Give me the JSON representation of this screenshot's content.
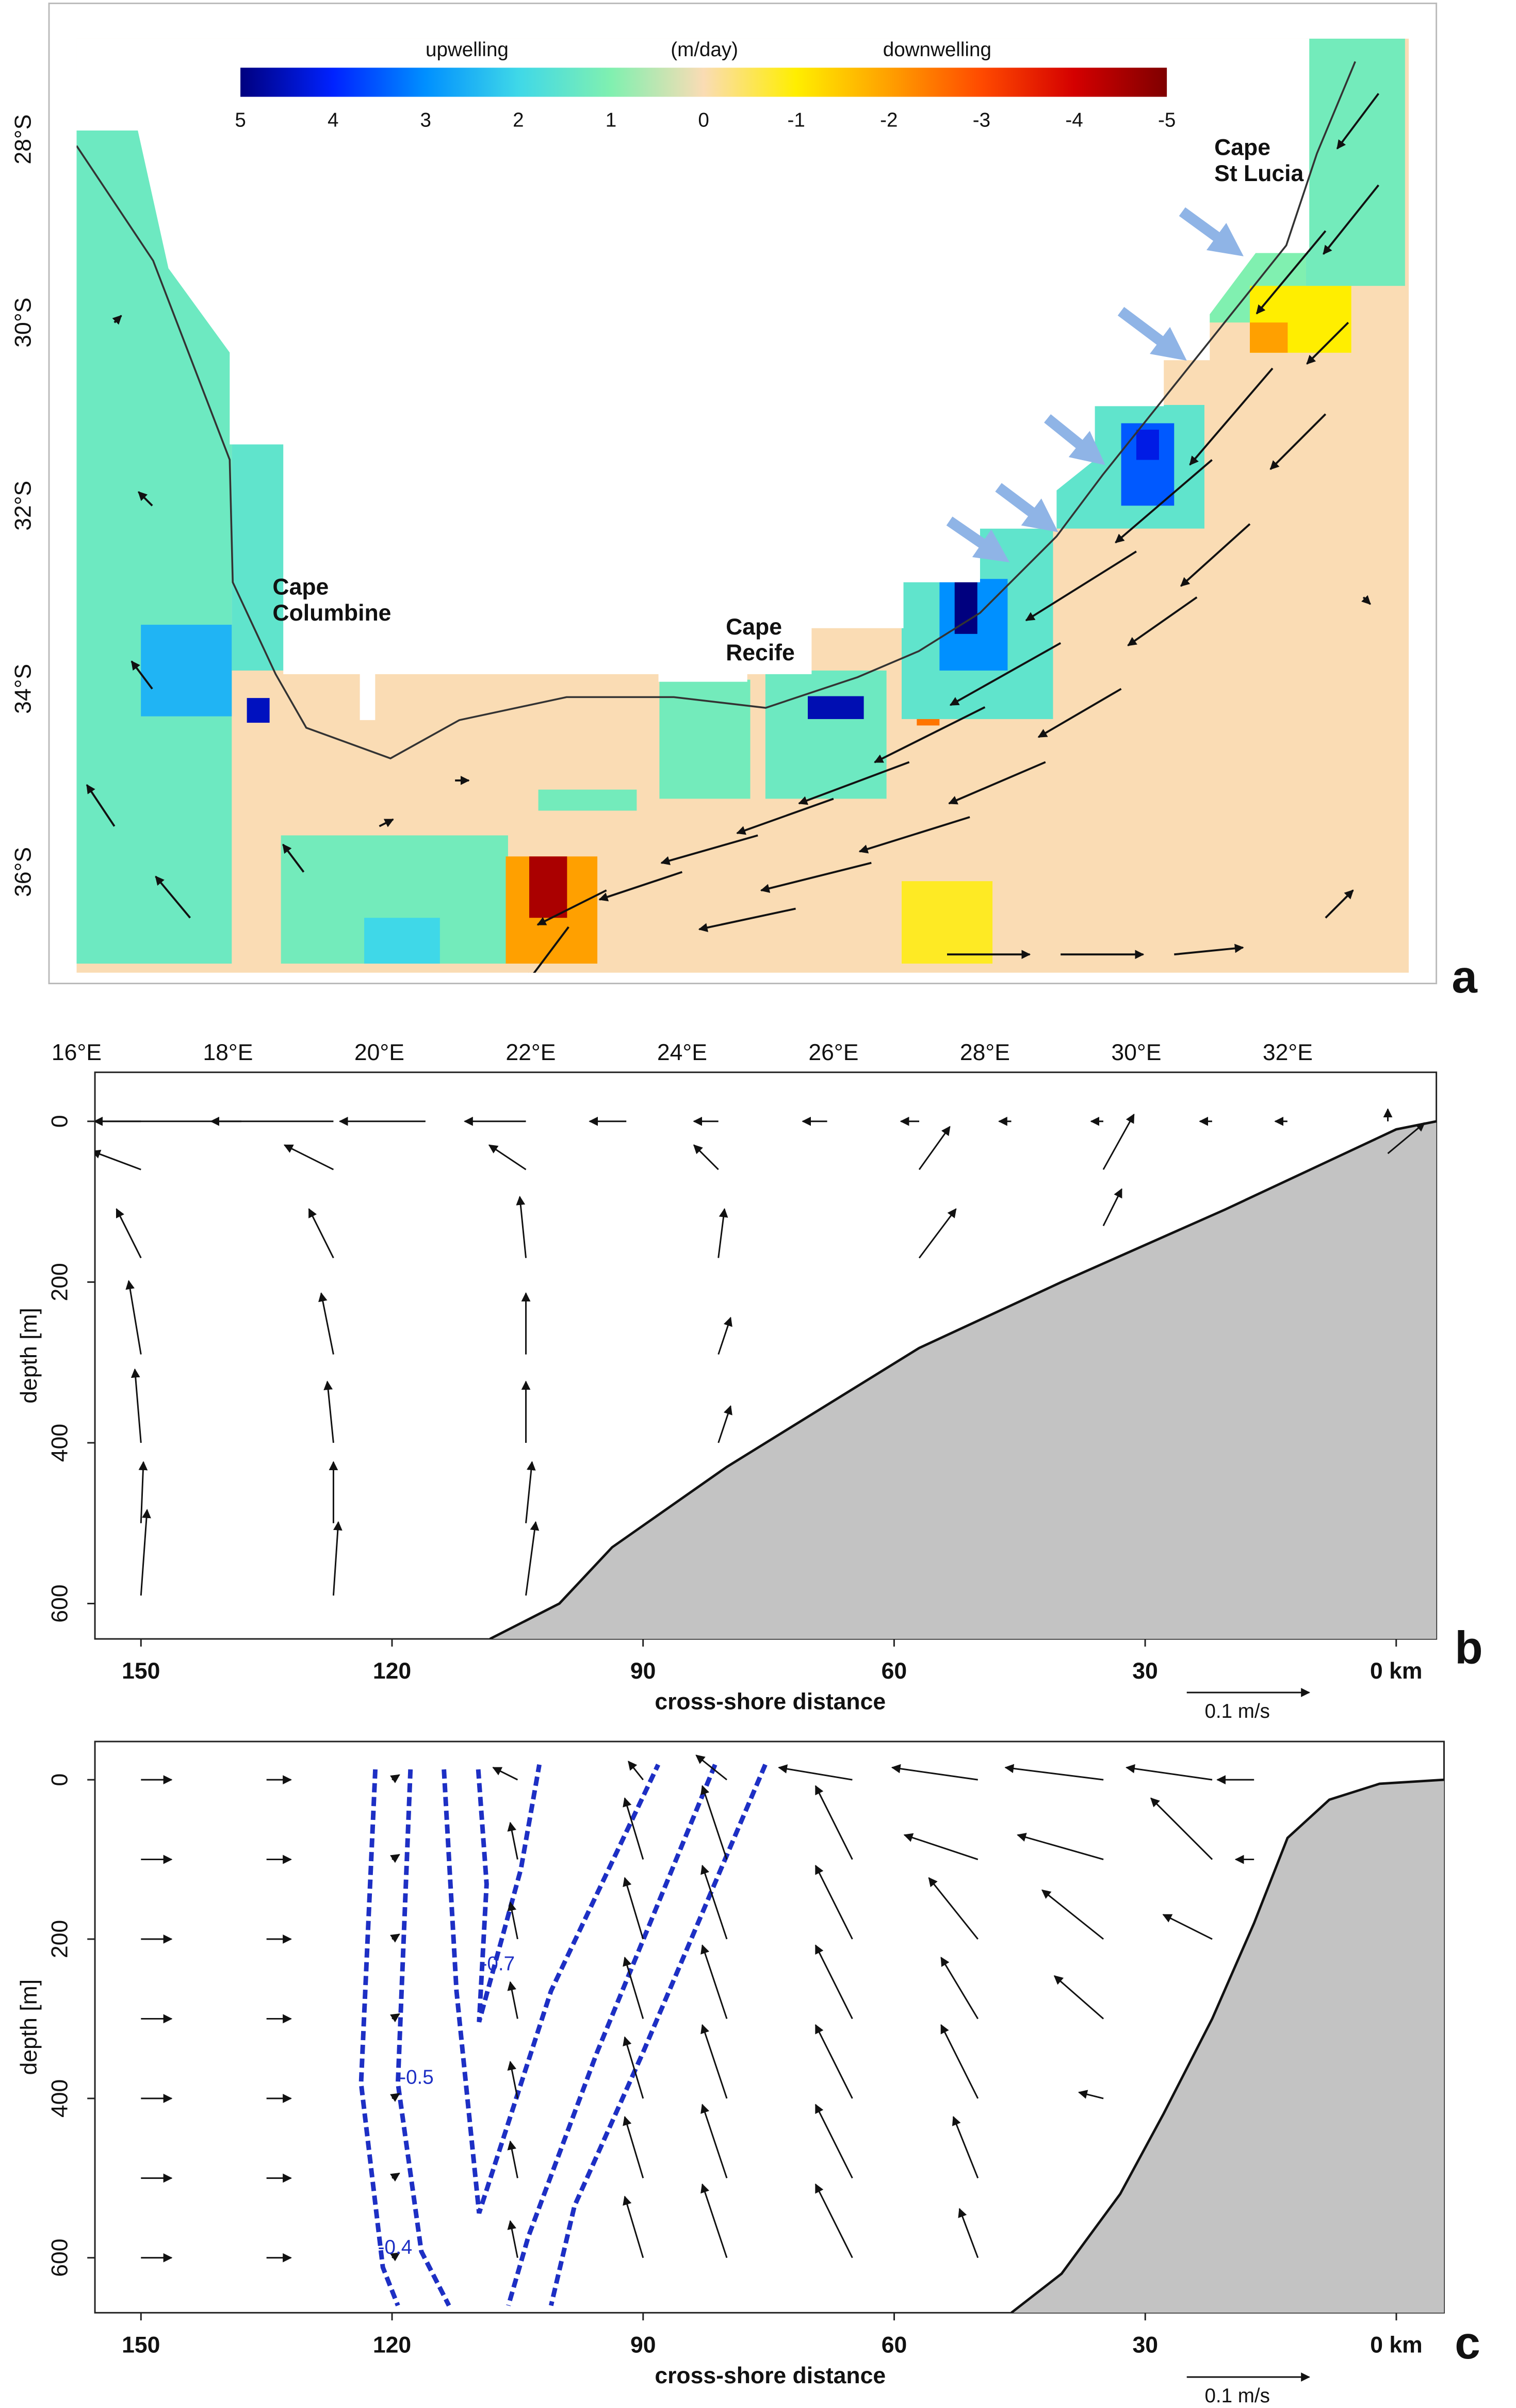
{
  "chart_data": [
    {
      "type": "map",
      "colorbar": {
        "ticks": [
          5,
          4,
          3,
          2,
          1,
          0,
          -1,
          -2,
          -3,
          -4,
          -5
        ],
        "colors": [
          "#00007f",
          "#0022ff",
          "#0090ff",
          "#3fd8e8",
          "#80f0b0",
          "#fadcb4",
          "#ffee00",
          "#ffa000",
          "#ff4a00",
          "#d40000",
          "#7f0000"
        ],
        "labels": [
          "upwelling",
          "(m/day)",
          "downwelling"
        ]
      },
      "xlim": [
        16,
        33.6
      ],
      "ylim": [
        -37.1,
        -26.9
      ],
      "xticks": [
        {
          "value": 16,
          "label": "16°E"
        },
        {
          "value": 18,
          "label": "18°E"
        },
        {
          "value": 20,
          "label": "20°E"
        },
        {
          "value": 22,
          "label": "22°E"
        },
        {
          "value": 24,
          "label": "24°E"
        },
        {
          "value": 26,
          "label": "26°E"
        },
        {
          "value": 28,
          "label": "28°E"
        },
        {
          "value": 30,
          "label": "30°E"
        },
        {
          "value": 32,
          "label": "32°E"
        }
      ],
      "yticks": [
        {
          "value": -28,
          "label": "28°S"
        },
        {
          "value": -30,
          "label": "30°S"
        },
        {
          "value": -32,
          "label": "32°S"
        },
        {
          "value": -34,
          "label": "34°S"
        },
        {
          "value": -36,
          "label": "36°S"
        }
      ],
      "patches": [
        {
          "lon": [
            16.0,
            18.05
          ],
          "lat": [
            -37.0,
            -27.9
          ],
          "value": 1.3
        },
        {
          "lon": [
            18.05,
            18.76
          ],
          "lat": [
            -33.8,
            -31.3
          ],
          "value": 1.5
        },
        {
          "lon": [
            16.85,
            18.05
          ],
          "lat": [
            -34.3,
            -33.3
          ],
          "value": 2.5
        },
        {
          "lon": [
            18.25,
            18.55
          ],
          "lat": [
            -34.37,
            -34.1
          ],
          "value": 4.5
        },
        {
          "lon": [
            18.7,
            21.7
          ],
          "lat": [
            -37.0,
            -35.6
          ],
          "value": 1.2
        },
        {
          "lon": [
            19.8,
            20.8
          ],
          "lat": [
            -37.0,
            -36.5
          ],
          "value": 2.0
        },
        {
          "lon": [
            22.1,
            23.4
          ],
          "lat": [
            -35.33,
            -35.1
          ],
          "value": 1.2
        },
        {
          "lon": [
            21.67,
            22.88
          ],
          "lat": [
            -37.0,
            -35.83
          ],
          "value": -2
        },
        {
          "lon": [
            21.98,
            22.48
          ],
          "lat": [
            -36.5,
            -35.83
          ],
          "value": -4.5
        },
        {
          "lon": [
            23.7,
            24.9
          ],
          "lat": [
            -35.2,
            -33.9
          ],
          "value": 1.2
        },
        {
          "lon": [
            25.1,
            26.7
          ],
          "lat": [
            -35.2,
            -33.8
          ],
          "value": 1.3
        },
        {
          "lon": [
            25.66,
            26.4
          ],
          "lat": [
            -34.33,
            -34.08
          ],
          "value": 4.6
        },
        {
          "lon": [
            27.1,
            27.4
          ],
          "lat": [
            -34.4,
            -33.9
          ],
          "value": -2.5
        },
        {
          "lon": [
            26.9,
            28.1
          ],
          "lat": [
            -37.0,
            -36.1
          ],
          "value": -0.8
        },
        {
          "lon": [
            26.9,
            28.9
          ],
          "lat": [
            -34.33,
            -32.25
          ],
          "value": 1.5
        },
        {
          "lon": [
            27.4,
            28.3
          ],
          "lat": [
            -33.8,
            -32.8
          ],
          "value": 3
        },
        {
          "lon": [
            27.6,
            27.9
          ],
          "lat": [
            -33.4,
            -32.83
          ],
          "value": 5
        },
        {
          "lon": [
            28.9,
            30.9
          ],
          "lat": [
            -32.25,
            -30.9
          ],
          "value": 1.5
        },
        {
          "lon": [
            29.8,
            30.5
          ],
          "lat": [
            -32.0,
            -31.1
          ],
          "value": 3.5
        },
        {
          "lon": [
            30.0,
            30.3
          ],
          "lat": [
            -31.5,
            -31.17
          ],
          "value": 4.2
        },
        {
          "lon": [
            30.9,
            32.24
          ],
          "lat": [
            -30.0,
            -29.0
          ],
          "value": 1.0
        },
        {
          "lon": [
            31.5,
            32.84
          ],
          "lat": [
            -30.33,
            -29.6
          ],
          "value": -1
        },
        {
          "lon": [
            31.5,
            32.0
          ],
          "lat": [
            -30.33,
            -30.0
          ],
          "value": -2
        },
        {
          "lon": [
            32.24,
            33.55
          ],
          "lat": [
            -29.6,
            -26.9
          ],
          "value": 1.2
        }
      ],
      "vectors": {
        "lon": [
          33.2,
          33.2,
          32.5,
          32.8,
          31.8,
          32.5,
          31.0,
          31.5,
          30.0,
          30.8,
          29.0,
          29.8,
          28.0,
          28.8,
          27.0,
          27.8,
          26.0,
          26.5,
          25.0,
          25.5,
          24.0,
          23.0,
          22.5,
          27.5,
          29.0,
          30.5,
          32.5,
          16.5,
          17,
          17,
          16.5,
          17.5,
          19,
          20,
          21,
          33
        ],
        "lat": [
          -27.5,
          -28.5,
          -29.0,
          -30.0,
          -30.5,
          -31.0,
          -31.5,
          -32.2,
          -32.5,
          -33.0,
          -33.5,
          -34.0,
          -34.2,
          -34.8,
          -34.8,
          -35.4,
          -35.2,
          -35.9,
          -35.6,
          -36.4,
          -36.0,
          -36.2,
          -36.6,
          -36.9,
          -36.9,
          -36.9,
          -36.5,
          -30,
          -32,
          -34,
          -35.5,
          -36.5,
          -36,
          -35.5,
          -35,
          -33
        ],
        "u": [
          -0.3,
          -0.4,
          -0.5,
          -0.3,
          -0.6,
          -0.4,
          -0.7,
          -0.5,
          -0.8,
          -0.5,
          -0.8,
          -0.6,
          -0.8,
          -0.7,
          -0.8,
          -0.8,
          -0.7,
          -0.8,
          -0.7,
          -0.7,
          -0.6,
          -0.5,
          -0.3,
          0.6,
          0.6,
          0.5,
          0.2,
          0.05,
          -0.1,
          -0.15,
          -0.2,
          -0.25,
          -0.15,
          0.1,
          0.1,
          0.05
        ],
        "v": [
          -0.4,
          -0.5,
          -0.6,
          -0.3,
          -0.7,
          -0.4,
          -0.6,
          -0.45,
          -0.5,
          -0.35,
          -0.45,
          -0.35,
          -0.4,
          -0.3,
          -0.3,
          -0.25,
          -0.25,
          -0.2,
          -0.2,
          -0.15,
          -0.2,
          -0.25,
          -0.4,
          0,
          0,
          0.05,
          0.2,
          0.05,
          0.1,
          0.2,
          0.3,
          0.3,
          0.2,
          0.05,
          0,
          -0.05
        ]
      },
      "annotations": [
        "Cape Columbine",
        "Cape Recife",
        "Cape St Lucia"
      ],
      "panel": "a"
    },
    {
      "type": "section",
      "xlim": [
        155.5,
        -4.8
      ],
      "ylim": [
        644,
        -61
      ],
      "xticks": [
        150,
        120,
        90,
        60,
        30,
        {
          "value": 0,
          "label": "0 km"
        }
      ],
      "yticks": [
        0,
        200,
        400,
        600
      ],
      "xlabel": "cross-shore distance",
      "ylabel": "depth [m]",
      "scale": {
        "value": 0.1,
        "label": "0.1 m/s"
      },
      "bottom": {
        "distance": [
          108.3,
          100,
          93.7,
          80,
          57,
          40,
          20.5,
          0,
          -4.8
        ],
        "depth": [
          644,
          600,
          530,
          430,
          282,
          200,
          110,
          10,
          0
        ]
      },
      "vectors": {
        "distance": [
          150,
          138,
          127,
          116,
          104,
          92,
          81,
          68,
          57,
          46,
          35,
          22,
          13,
          1,
          150,
          150,
          150,
          150,
          150,
          150,
          127,
          127,
          127,
          127,
          127,
          127,
          104,
          104,
          104,
          104,
          104,
          104,
          81,
          81,
          81,
          81,
          57,
          57,
          35,
          35,
          1
        ],
        "depth": [
          0,
          0,
          0,
          0,
          0,
          0,
          0,
          0,
          0,
          0,
          0,
          0,
          0,
          0,
          60,
          170,
          290,
          400,
          500,
          590,
          60,
          170,
          290,
          400,
          500,
          590,
          60,
          170,
          290,
          400,
          500,
          590,
          60,
          170,
          290,
          400,
          60,
          170,
          60,
          130,
          40
        ],
        "u": [
          -0.19,
          -0.12,
          -0.1,
          -0.07,
          -0.05,
          -0.03,
          -0.02,
          -0.02,
          -0.015,
          -0.01,
          -0.01,
          -0.01,
          -0.01,
          0,
          -0.04,
          -0.02,
          -0.01,
          -0.005,
          0.002,
          0.005,
          -0.04,
          -0.02,
          -0.01,
          -0.005,
          0,
          0.004,
          -0.03,
          -0.005,
          0,
          0,
          0.005,
          0.008,
          -0.02,
          0.005,
          0.01,
          0.01,
          0.025,
          0.03,
          0.025,
          0.015,
          0.03
        ],
        "v": [
          0,
          0,
          0,
          0,
          0,
          0,
          0,
          0,
          0,
          0,
          0,
          0,
          0,
          0.01,
          0.015,
          0.04,
          0.06,
          0.06,
          0.05,
          0.07,
          0.02,
          0.04,
          0.05,
          0.05,
          0.05,
          0.06,
          0.02,
          0.05,
          0.05,
          0.05,
          0.05,
          0.06,
          0.02,
          0.04,
          0.03,
          0.03,
          0.035,
          0.04,
          0.045,
          0.03,
          0.025
        ]
      },
      "panel": "b"
    },
    {
      "type": "section",
      "xlim": [
        155.5,
        -5.7
      ],
      "ylim": [
        669,
        -48
      ],
      "xticks": [
        150,
        120,
        90,
        60,
        30,
        {
          "value": 0,
          "label": "0 km"
        }
      ],
      "yticks": [
        0,
        200,
        400,
        600
      ],
      "xlabel": "cross-shore distance",
      "ylabel": "depth [m]",
      "scale": {
        "value": 0.1,
        "label": "0.1 m/s"
      },
      "bottom": {
        "distance": [
          46,
          40,
          33,
          27.8,
          22,
          17,
          13,
          8,
          2,
          -5.7
        ],
        "depth": [
          669,
          620,
          520,
          419,
          300,
          180,
          73,
          25,
          5,
          0
        ]
      },
      "vectors": {
        "distance": [
          150,
          150,
          150,
          150,
          150,
          150,
          150,
          135,
          135,
          135,
          135,
          135,
          135,
          135,
          120,
          120,
          120,
          120,
          120,
          120,
          120,
          105,
          105,
          105,
          105,
          105,
          105,
          105,
          90,
          90,
          90,
          90,
          90,
          90,
          90,
          80,
          80,
          80,
          80,
          80,
          80,
          80,
          65,
          65,
          65,
          65,
          65,
          65,
          65,
          50,
          50,
          50,
          50,
          50,
          50,
          50,
          35,
          35,
          35,
          35,
          35,
          22,
          22,
          22,
          17,
          17
        ],
        "depth": [
          0,
          100,
          200,
          300,
          400,
          500,
          600,
          0,
          100,
          200,
          300,
          400,
          500,
          600,
          0,
          100,
          200,
          300,
          400,
          500,
          600,
          0,
          100,
          200,
          300,
          400,
          500,
          600,
          0,
          100,
          200,
          300,
          400,
          500,
          600,
          0,
          100,
          200,
          300,
          400,
          500,
          600,
          0,
          100,
          200,
          300,
          400,
          500,
          600,
          0,
          100,
          200,
          300,
          400,
          500,
          600,
          0,
          100,
          200,
          300,
          400,
          0,
          100,
          200,
          0,
          100
        ],
        "u": [
          0.025,
          0.025,
          0.025,
          0.025,
          0.025,
          0.025,
          0.025,
          0.02,
          0.02,
          0.02,
          0.02,
          0.02,
          0.02,
          0.02,
          0.006,
          0.006,
          0.006,
          0.006,
          0.006,
          0.006,
          0.006,
          -0.02,
          -0.006,
          -0.006,
          -0.006,
          -0.006,
          -0.006,
          -0.006,
          -0.012,
          -0.015,
          -0.015,
          -0.015,
          -0.015,
          -0.015,
          -0.015,
          -0.025,
          -0.02,
          -0.02,
          -0.02,
          -0.02,
          -0.02,
          -0.02,
          -0.06,
          -0.03,
          -0.03,
          -0.03,
          -0.03,
          -0.03,
          -0.03,
          -0.07,
          -0.06,
          -0.04,
          -0.03,
          -0.03,
          -0.02,
          -0.015,
          -0.08,
          -0.07,
          -0.05,
          -0.04,
          -0.02,
          -0.07,
          -0.05,
          -0.04,
          -0.03,
          -0.015
        ],
        "v": [
          0,
          0,
          0,
          0,
          0,
          0,
          0,
          0,
          0,
          0,
          0,
          0,
          0,
          0,
          0.004,
          0.004,
          0.004,
          0.004,
          0.004,
          0.004,
          0.004,
          0.01,
          0.03,
          0.03,
          0.03,
          0.03,
          0.03,
          0.03,
          0.015,
          0.05,
          0.05,
          0.05,
          0.05,
          0.05,
          0.05,
          0.02,
          0.06,
          0.06,
          0.06,
          0.06,
          0.06,
          0.06,
          0.01,
          0.06,
          0.06,
          0.06,
          0.06,
          0.06,
          0.06,
          0.01,
          0.02,
          0.05,
          0.05,
          0.06,
          0.05,
          0.04,
          0.01,
          0.02,
          0.04,
          0.035,
          0.005,
          0.01,
          0.05,
          0.02,
          0,
          0
        ]
      },
      "contours": [
        {
          "level": -0.7,
          "segments": [
            {
              "distance": [
                109.7,
                108.7,
                109.6,
                104.6,
                102.4
              ],
              "depth": [
                -13,
                131,
                304,
                112,
                -19
              ]
            }
          ]
        },
        {
          "segments": [
            {
              "distance": [
                113.8,
                112.3,
                109.6,
                101.0,
                88.2
              ],
              "depth": [
                -13,
                265,
                544,
                265,
                -19
              ]
            }
          ]
        },
        {
          "level": -0.5,
          "segments": [
            {
              "distance": [
                117.8,
                119.3,
                116.5,
                113.2
              ],
              "depth": [
                -13,
                381,
                592,
                660
              ]
            },
            {
              "distance": [
                81.4,
                95.5,
                103.7,
                106.1
              ],
              "depth": [
                -19,
                342,
                573,
                660
              ]
            }
          ]
        },
        {
          "level": -0.4,
          "segments": [
            {
              "distance": [
                122.0,
                123.7,
                121.1,
                119.3
              ],
              "depth": [
                -13,
                381,
                612,
                660
              ]
            },
            {
              "distance": [
                75.4,
                90.0,
                98.2,
                101.0
              ],
              "depth": [
                -19,
                342,
                535,
                660
              ]
            }
          ]
        }
      ],
      "panel": "c"
    }
  ]
}
